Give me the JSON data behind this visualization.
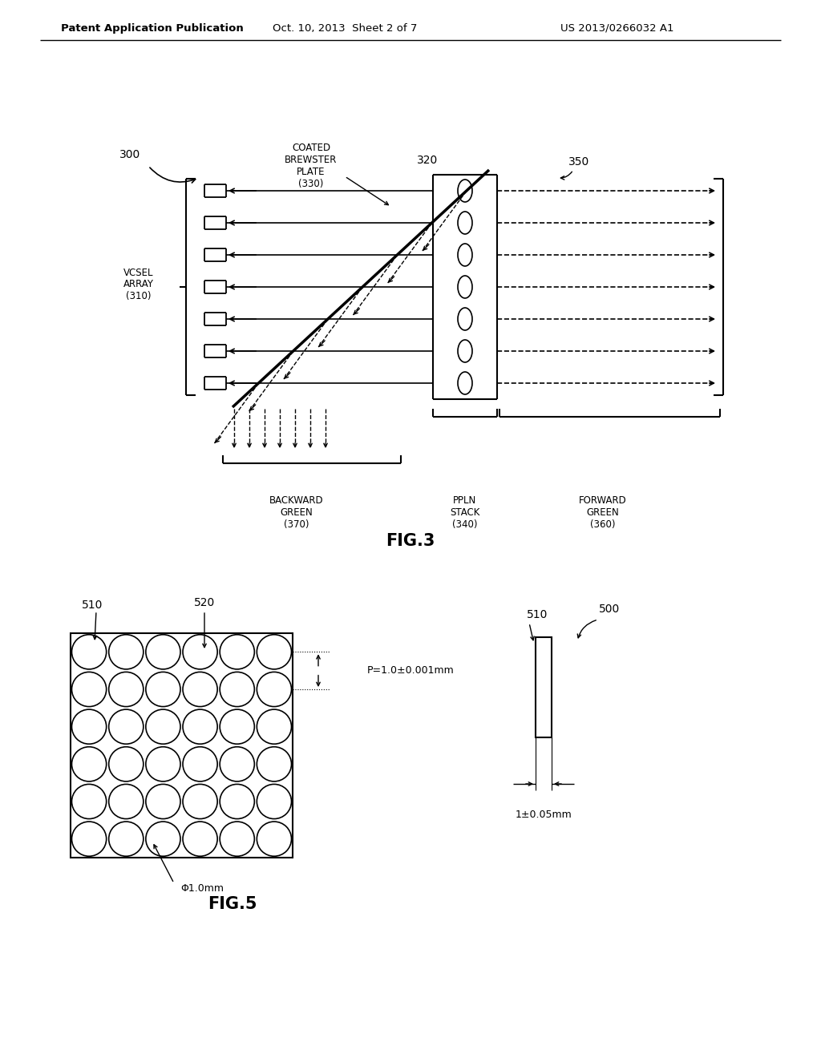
{
  "bg_color": "#ffffff",
  "line_color": "#000000",
  "header_text": "Patent Application Publication",
  "header_date": "Oct. 10, 2013  Sheet 2 of 7",
  "header_patent": "US 2013/0266032 A1",
  "fig3_label": "FIG.3",
  "fig5_label": "FIG.5",
  "fig3_ref300": "300",
  "fig3_ref320": "320",
  "fig3_ref350": "350",
  "fig3_label_coated": "COATED\nBREWSTER\nPLATE\n(330)",
  "fig3_label_vcsel": "VCSEL\nARRAY\n(310)",
  "fig3_label_backward": "BACKWARD\nGREEN\n(370)",
  "fig3_label_ppln": "PPLN\nSTACK\n(340)",
  "fig3_label_forward": "FORWARD\nGREEN\n(360)",
  "fig5_ref510_left": "510",
  "fig5_ref520": "520",
  "fig5_ref500": "500",
  "fig5_ref510_right": "510",
  "fig5_label_pitch": "P=1.0±0.001mm",
  "fig5_label_phi": "Φ1.0mm",
  "fig5_label_thick": "1±0.05mm"
}
